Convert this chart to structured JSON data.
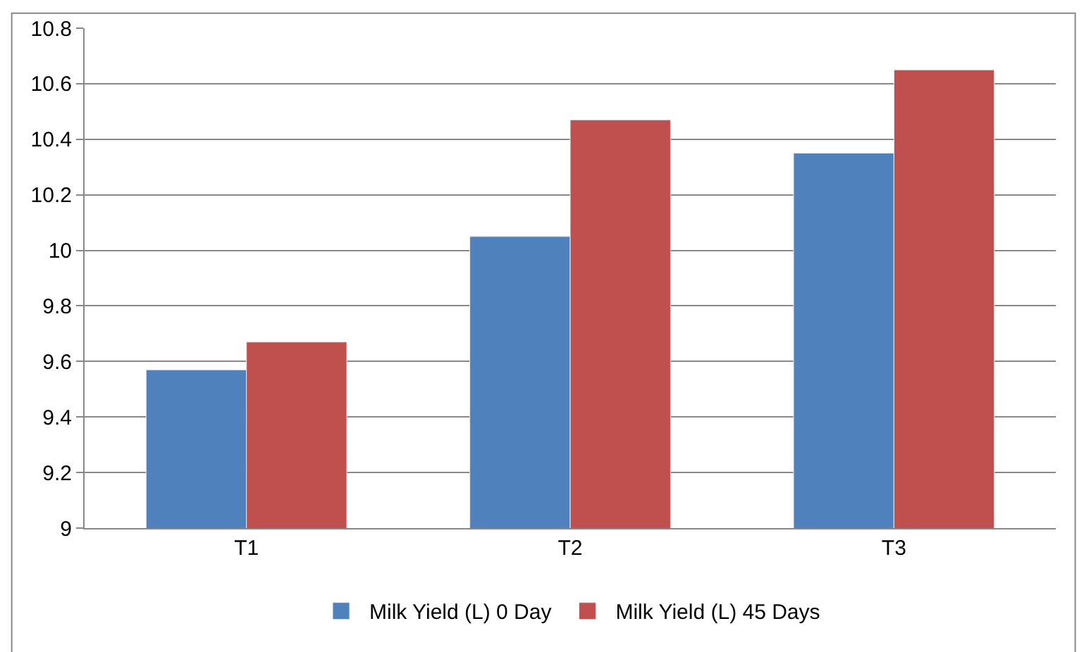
{
  "chart_data": {
    "type": "bar",
    "categories": [
      "T1",
      "T2",
      "T3"
    ],
    "series": [
      {
        "name": "Milk Yield (L) 0 Day",
        "color": "#4f81bd",
        "values": [
          9.57,
          10.05,
          10.35
        ]
      },
      {
        "name": "Milk Yield (L) 45 Days",
        "color": "#c0504d",
        "values": [
          9.67,
          10.47,
          10.65
        ]
      }
    ],
    "ylim": [
      9,
      10.8
    ],
    "yticks": [
      9,
      9.2,
      9.4,
      9.6,
      9.8,
      10,
      10.2,
      10.4,
      10.6,
      10.8
    ],
    "grid": "y",
    "legend": "bottom"
  }
}
